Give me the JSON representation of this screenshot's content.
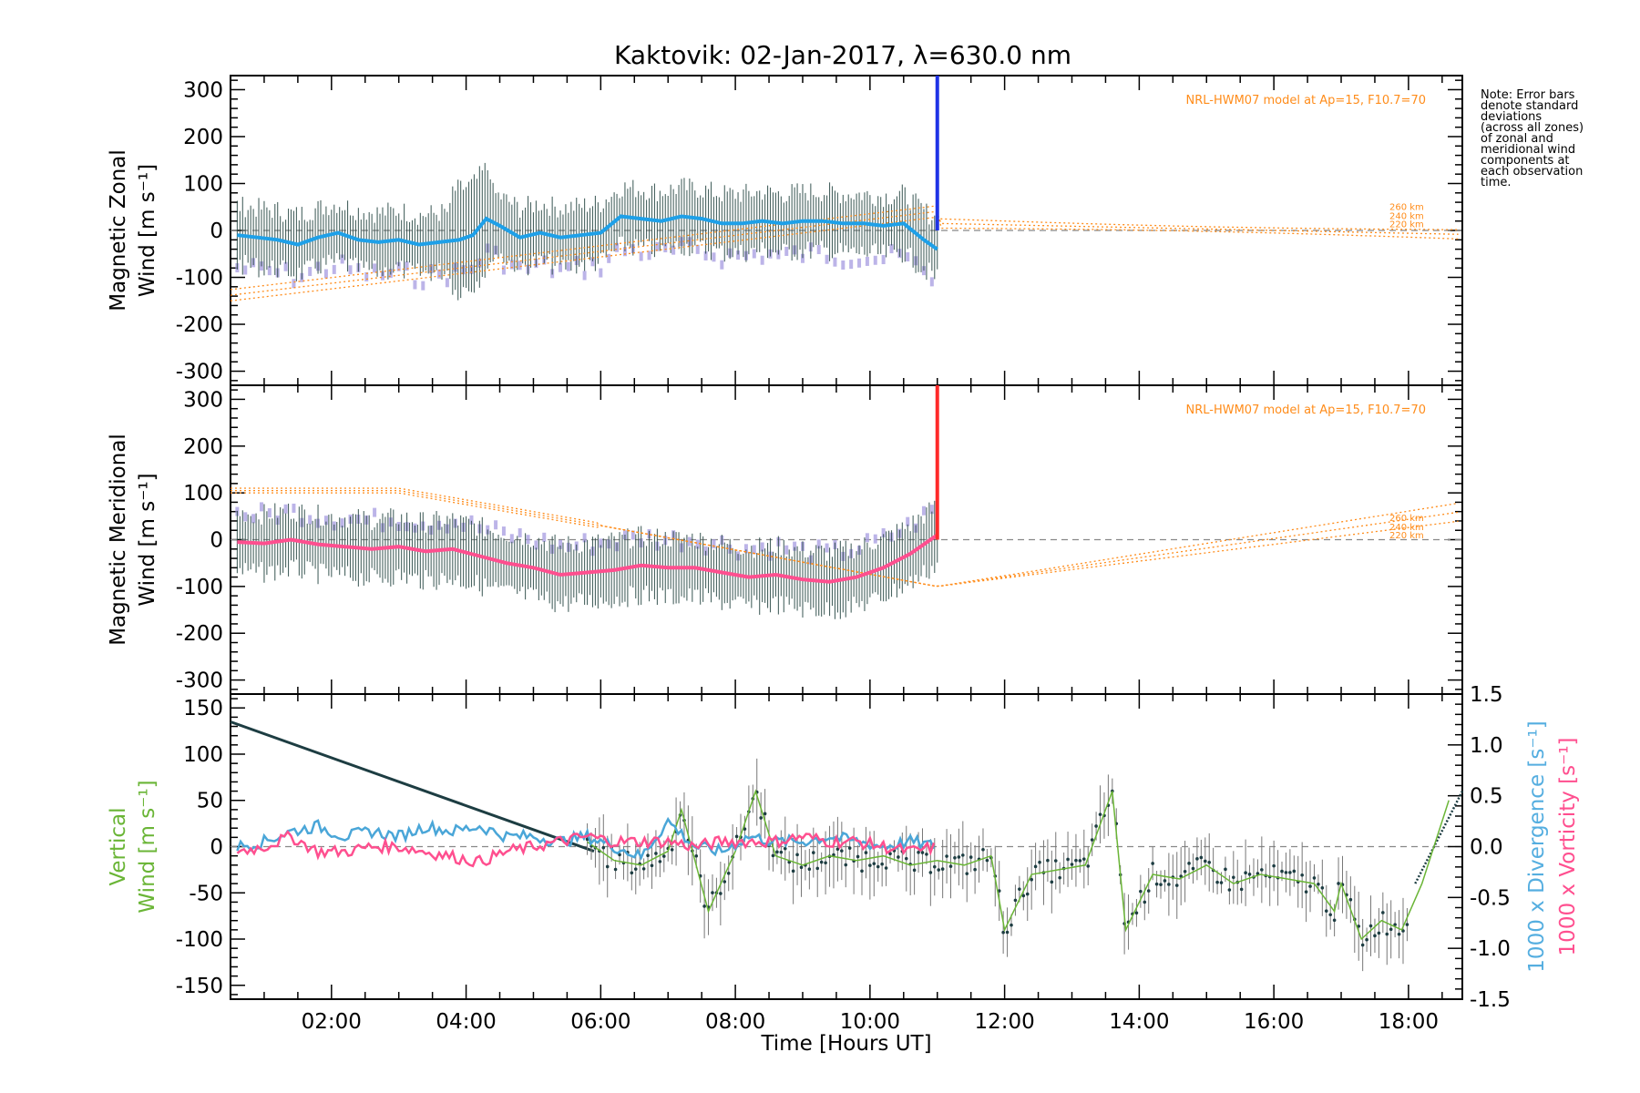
{
  "chart_data": [
    {
      "type": "line",
      "title": "Kaktovik: 02-Jan-2017, λ=630.0 nm",
      "ylabel_line1": "Magnetic Zonal",
      "ylabel_line2": "Wind [m s⁻¹]",
      "ylim": [
        -330,
        330
      ],
      "yticks": [
        300,
        200,
        100,
        0,
        -100,
        -200,
        -300
      ],
      "xlim": [
        0.5,
        18.8
      ],
      "model_note": "NRL-HWM07 model at Ap=15, F10.7=70",
      "altitude_labels": [
        "260 km",
        "240 km",
        "220 km"
      ],
      "colors": {
        "mean": "#1ea0e8",
        "end": "#1f33e6",
        "errorbar": "#2a4a46",
        "model": "#ff8c1a",
        "scatter": "#a59be0"
      },
      "series": [
        {
          "x": [
            0.6,
            0.9,
            1.2,
            1.5,
            1.8,
            2.1,
            2.4,
            2.7,
            3.0,
            3.3,
            3.6,
            3.9,
            4.1,
            4.3,
            4.5,
            4.8,
            5.1,
            5.4,
            5.7,
            6.0,
            6.3,
            6.6,
            6.9,
            7.2,
            7.5,
            7.8,
            8.1,
            8.4,
            8.7,
            9.0,
            9.3,
            9.6,
            9.9,
            10.2,
            10.5,
            10.8,
            11.0
          ],
          "values": [
            -10,
            -15,
            -20,
            -30,
            -15,
            -5,
            -20,
            -25,
            -20,
            -30,
            -25,
            -20,
            -10,
            25,
            10,
            -15,
            -5,
            -15,
            -10,
            -5,
            30,
            25,
            20,
            30,
            25,
            15,
            15,
            20,
            15,
            20,
            20,
            15,
            15,
            10,
            15,
            -20,
            -40
          ]
        }
      ]
    },
    {
      "type": "line",
      "ylabel_line1": "Magnetic Meridional",
      "ylabel_line2": "Wind [m s⁻¹]",
      "ylim": [
        -330,
        330
      ],
      "yticks": [
        300,
        200,
        100,
        0,
        -100,
        -200,
        -300
      ],
      "xlim": [
        0.5,
        18.8
      ],
      "model_note": "NRL-HWM07 model at Ap=15, F10.7=70",
      "altitude_labels": [
        "260 km",
        "240 km",
        "220 km"
      ],
      "colors": {
        "mean": "#ff4f8f",
        "end": "#ff2a2a",
        "errorbar": "#2a4a46",
        "model": "#ff8c1a",
        "scatter": "#a59be0"
      },
      "series": [
        {
          "x": [
            0.6,
            1.0,
            1.4,
            1.8,
            2.2,
            2.6,
            3.0,
            3.4,
            3.8,
            4.2,
            4.6,
            5.0,
            5.4,
            5.8,
            6.2,
            6.6,
            7.0,
            7.4,
            7.8,
            8.2,
            8.6,
            9.0,
            9.4,
            9.8,
            10.2,
            10.6,
            11.0
          ],
          "values": [
            -5,
            -8,
            0,
            -10,
            -15,
            -20,
            -15,
            -25,
            -20,
            -35,
            -50,
            -60,
            -75,
            -70,
            -65,
            -55,
            -60,
            -60,
            -70,
            -80,
            -75,
            -85,
            -90,
            -80,
            -60,
            -30,
            10
          ]
        }
      ]
    },
    {
      "type": "line",
      "ylabel_line1": "Vertical",
      "ylabel_line2": "Wind [m s⁻¹]",
      "ylim": [
        -165,
        165
      ],
      "yticks": [
        150,
        100,
        50,
        0,
        -50,
        -100,
        -150
      ],
      "y2lim": [
        -1.5,
        1.5
      ],
      "y2ticks": [
        1.5,
        1.0,
        0.5,
        0.0,
        -0.5,
        -1.0,
        -1.5
      ],
      "y2label_div": "1000 x Divergence [s⁻¹]",
      "y2label_vort": "1000 x Vorticity [s⁻¹]",
      "xlim": [
        0.5,
        18.8
      ],
      "xticks": [
        "02:00",
        "04:00",
        "06:00",
        "08:00",
        "10:00",
        "12:00",
        "14:00",
        "16:00",
        "18:00"
      ],
      "xtick_values": [
        2,
        4,
        6,
        8,
        10,
        12,
        14,
        16,
        18
      ],
      "xlabel": "Time [Hours UT]",
      "colors": {
        "vertical": "#6ab536",
        "divergence": "#4aa6d8",
        "vorticity": "#ff4f8f",
        "label_vertical": "#6ab536",
        "label_div": "#55aee0",
        "label_vort": "#ff4f8f"
      },
      "series": [
        {
          "name": "Vertical Wind",
          "x": [
            5.8,
            6.2,
            6.6,
            7.0,
            7.2,
            7.6,
            8.0,
            8.3,
            8.6,
            9.0,
            9.4,
            9.8,
            10.2,
            10.6,
            11.0,
            11.4,
            11.8,
            12.0,
            12.4,
            12.8,
            13.2,
            13.6,
            13.8,
            14.2,
            14.6,
            15.0,
            15.4,
            15.8,
            16.2,
            16.6,
            16.9,
            17.0,
            17.3,
            17.6,
            17.9,
            18.2,
            18.6
          ],
          "values": [
            5,
            -15,
            -20,
            -5,
            40,
            -70,
            -5,
            60,
            -10,
            -20,
            -10,
            -15,
            -10,
            -20,
            -15,
            -20,
            -10,
            -90,
            -30,
            -25,
            -20,
            60,
            -90,
            -30,
            -35,
            -20,
            -40,
            -30,
            -35,
            -40,
            -70,
            -40,
            -100,
            -80,
            -90,
            -40,
            50
          ]
        },
        {
          "name": "1000 x Divergence",
          "x": [
            0.6,
            1.0,
            1.4,
            1.8,
            2.2,
            2.6,
            3.0,
            3.4,
            3.8,
            4.2,
            4.6,
            5.0,
            5.4,
            5.8,
            6.2,
            6.6,
            7.0,
            7.4,
            7.8,
            8.2,
            8.6,
            9.0,
            9.4,
            9.8,
            10.2,
            10.6,
            11.0
          ],
          "values": [
            0.0,
            0.05,
            0.15,
            0.2,
            0.1,
            0.15,
            0.1,
            0.2,
            0.15,
            0.2,
            0.1,
            0.1,
            0.05,
            0.1,
            0.0,
            -0.1,
            0.25,
            0.0,
            -0.05,
            0.1,
            0.05,
            0.05,
            0.1,
            0.05,
            0.0,
            0.05,
            0.0
          ]
        },
        {
          "name": "1000 x Vorticity",
          "x": [
            0.6,
            1.0,
            1.4,
            1.8,
            2.2,
            2.6,
            3.0,
            3.4,
            3.8,
            4.2,
            4.6,
            5.0,
            5.4,
            5.8,
            6.2,
            6.6,
            7.0,
            7.4,
            7.8,
            8.2,
            8.6,
            9.0,
            9.4,
            9.8,
            10.2,
            10.6,
            11.0
          ],
          "values": [
            -0.05,
            0.0,
            0.1,
            -0.05,
            -0.05,
            0.0,
            0.0,
            -0.05,
            -0.1,
            -0.15,
            -0.05,
            0.0,
            0.05,
            0.1,
            0.05,
            0.05,
            0.05,
            0.0,
            0.05,
            0.05,
            0.05,
            0.1,
            0.05,
            0.05,
            0.0,
            -0.05,
            0.0
          ]
        }
      ]
    }
  ],
  "note_lines": [
    "Note: Error bars",
    "denote standard",
    "deviations",
    "(across all zones)",
    "of zonal and",
    "meridional wind",
    "components at",
    "each observation",
    "time."
  ]
}
